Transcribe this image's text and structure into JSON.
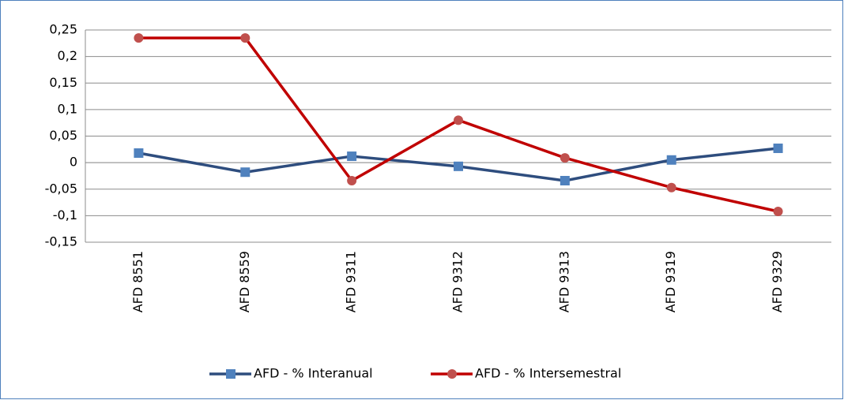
{
  "chart_data": {
    "type": "line",
    "categories": [
      "AFD 8551",
      "AFD 8559",
      "AFD 9311",
      "AFD 9312",
      "AFD 9313",
      "AFD 9319",
      "AFD 9329"
    ],
    "series": [
      {
        "name": "AFD - % Interanual",
        "color": "#2e4d7e",
        "marker_color": "#4f81bd",
        "marker": "square",
        "values": [
          0.018,
          -0.018,
          0.012,
          -0.007,
          -0.034,
          0.005,
          0.027
        ]
      },
      {
        "name": "AFD - % Intersemestral",
        "color": "#c00000",
        "marker_color": "#c0504d",
        "marker": "circle",
        "values": [
          0.235,
          0.235,
          -0.034,
          0.08,
          0.009,
          -0.047,
          -0.092
        ]
      }
    ],
    "ylim": [
      -0.15,
      0.25
    ],
    "yticks": [
      {
        "value": -0.15,
        "label": "-0,15"
      },
      {
        "value": -0.1,
        "label": "-0,1"
      },
      {
        "value": -0.05,
        "label": "-0,05"
      },
      0,
      {
        "value": 0.05,
        "label": "0,05"
      },
      {
        "value": 0.1,
        "label": "0,1"
      },
      {
        "value": 0.15,
        "label": "0,15"
      },
      {
        "value": 0.2,
        "label": "0,2"
      },
      {
        "value": 0.25,
        "label": "0,25"
      }
    ],
    "grid": true,
    "legend": "bottom"
  }
}
